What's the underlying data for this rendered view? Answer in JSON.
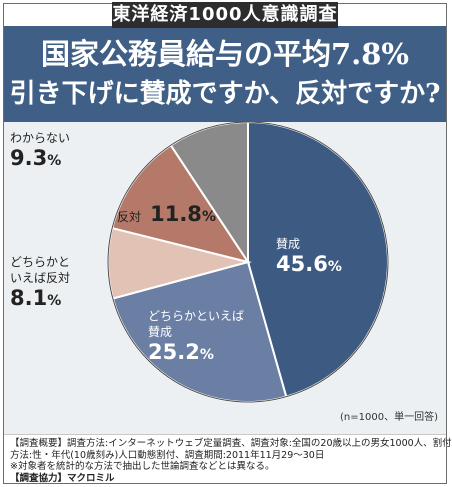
{
  "survey_badge": "東洋経済1000人意識調査",
  "title_line1": "国家公務員給与の平均7.8%",
  "title_line2": "引き下げに賛成ですか、反対ですか?",
  "chart_data": {
    "type": "pie",
    "unit": "%",
    "slices": [
      {
        "label": "賛成",
        "value": 45.6,
        "color": "#3d5a82",
        "label_color": "#ffffff"
      },
      {
        "label": "どちらかといえば賛成",
        "value": 25.2,
        "color": "#6a7fa3",
        "label_color": "#ffffff"
      },
      {
        "label": "どちらかといえば反対",
        "value": 8.1,
        "color": "#e2c2b4",
        "label_color": "#222222"
      },
      {
        "label": "反対",
        "value": 11.8,
        "color": "#b47969",
        "label_color": "#222222"
      },
      {
        "label": "わからない",
        "value": 9.3,
        "color": "#8a8a8a",
        "label_color": "#222222"
      }
    ],
    "labels": {
      "agree_name": "賛成",
      "agree_value": "45.6",
      "somewhat_agree_name_1": "どちらかといえば",
      "somewhat_agree_name_2": "賛成",
      "somewhat_agree_value": "25.2",
      "somewhat_oppose_name_1": "どちらかと",
      "somewhat_oppose_name_2": "いえば反対",
      "somewhat_oppose_value": "8.1",
      "oppose_name": "反対",
      "oppose_value": "11.8",
      "dont_know_name": "わからない",
      "dont_know_value": "9.3",
      "percent_sign": "%"
    },
    "sample_note": "(n=1000、単一回答)"
  },
  "footer": {
    "line1": "【調査概要】調査方法:インターネットウェブ定量調査、調査対象:全国の20歳以上の男女1000人、割付",
    "line2": "方法:性・年代(10歳刻み)人口動態割付、調査期間:2011年11月29〜30日",
    "line3": "※対象者を統計的な方法で抽出した世論調査などとは異なる。",
    "line4": "【調査協力】マクロミル"
  }
}
